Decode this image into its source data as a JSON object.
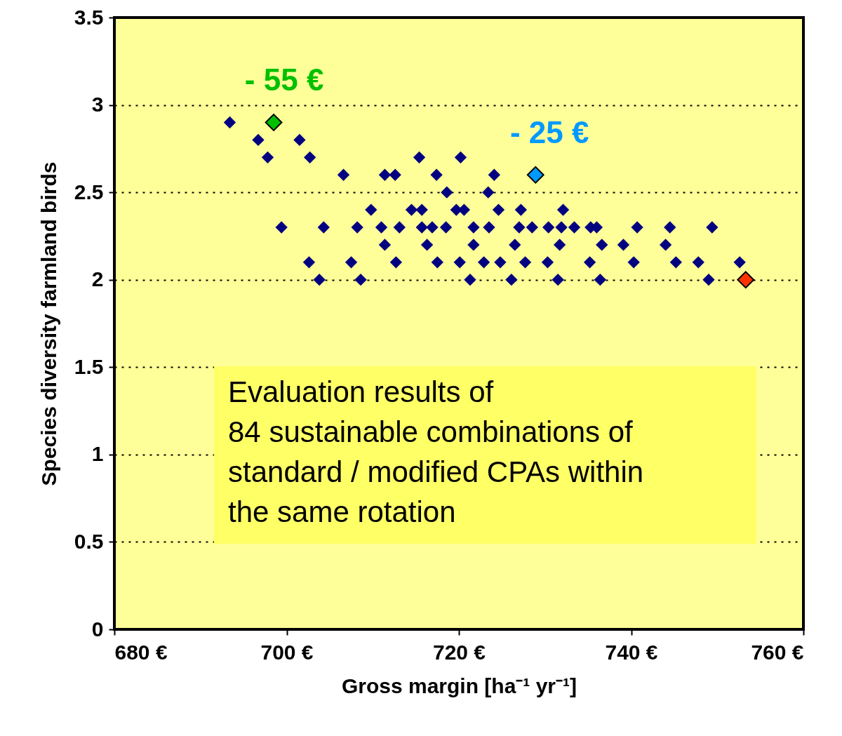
{
  "chart_data": {
    "type": "scatter",
    "xlabel": "Gross margin [ha⁻¹ yr⁻¹]",
    "ylabel": "Species diversity farmland birds",
    "xlim": [
      680,
      760
    ],
    "xticks": [
      {
        "value": 680,
        "label": "680 €"
      },
      {
        "value": 700,
        "label": "700 €"
      },
      {
        "value": 720,
        "label": "720 €"
      },
      {
        "value": 740,
        "label": "740 €"
      },
      {
        "value": 760,
        "label": "760 €"
      }
    ],
    "ylim": [
      0,
      3.5
    ],
    "yticks": [
      0,
      0.5,
      1,
      1.5,
      2,
      2.5,
      3,
      3.5
    ],
    "grid": "y",
    "marker": "diamond",
    "series": [
      {
        "color": "#000080",
        "x": [
          693.4,
          696.7,
          701.5,
          697.8,
          702.7,
          715.4,
          720.2,
          706.6,
          711.4,
          712.6,
          717.4,
          724.1,
          718.6,
          723.4,
          709.8,
          714.5,
          715.7,
          719.7,
          720.6,
          724.6,
          727.2,
          732.1,
          699.4,
          704.3,
          708.2,
          711.0,
          713.1,
          715.7,
          716.9,
          718.5,
          721.7,
          723.5,
          727.0,
          728.5,
          730.4,
          731.9,
          733.4,
          735.3,
          736.0,
          740.7,
          744.5,
          749.4,
          711.4,
          716.3,
          721.7,
          726.5,
          731.7,
          736.6,
          739.1,
          744.0,
          702.6,
          707.5,
          712.7,
          717.5,
          720.1,
          722.9,
          724.8,
          727.7,
          730.3,
          735.2,
          740.3,
          745.2,
          747.8,
          752.6,
          703.8,
          708.6,
          721.3,
          726.1,
          731.5,
          736.4,
          749.0
        ],
        "values": [
          2.9,
          2.8,
          2.8,
          2.7,
          2.7,
          2.7,
          2.7,
          2.6,
          2.6,
          2.6,
          2.6,
          2.6,
          2.5,
          2.5,
          2.4,
          2.4,
          2.4,
          2.4,
          2.4,
          2.4,
          2.4,
          2.4,
          2.3,
          2.3,
          2.3,
          2.3,
          2.3,
          2.3,
          2.3,
          2.3,
          2.3,
          2.3,
          2.3,
          2.3,
          2.3,
          2.3,
          2.3,
          2.3,
          2.3,
          2.3,
          2.3,
          2.3,
          2.2,
          2.2,
          2.2,
          2.2,
          2.2,
          2.2,
          2.2,
          2.2,
          2.1,
          2.1,
          2.1,
          2.1,
          2.1,
          2.1,
          2.1,
          2.1,
          2.1,
          2.1,
          2.1,
          2.1,
          2.1,
          2.1,
          2.0,
          2.0,
          2.0,
          2.0,
          2.0,
          2.0,
          2.0
        ]
      },
      {
        "color": "#00c000",
        "x": [
          698.5
        ],
        "values": [
          2.9
        ]
      },
      {
        "color": "#0099ff",
        "x": [
          728.9
        ],
        "values": [
          2.6
        ]
      },
      {
        "color": "#ff3300",
        "x": [
          753.3
        ],
        "values": [
          2.0
        ]
      }
    ],
    "annotations": [
      {
        "text": "- 55 €",
        "x": 698.5,
        "y": 2.9
      },
      {
        "text": "- 25 €",
        "x": 728.9,
        "y": 2.6
      },
      "Evaluation results of\n84 sustainable combinations of\nstandard / modified CPAs within\nthe same rotation"
    ]
  }
}
